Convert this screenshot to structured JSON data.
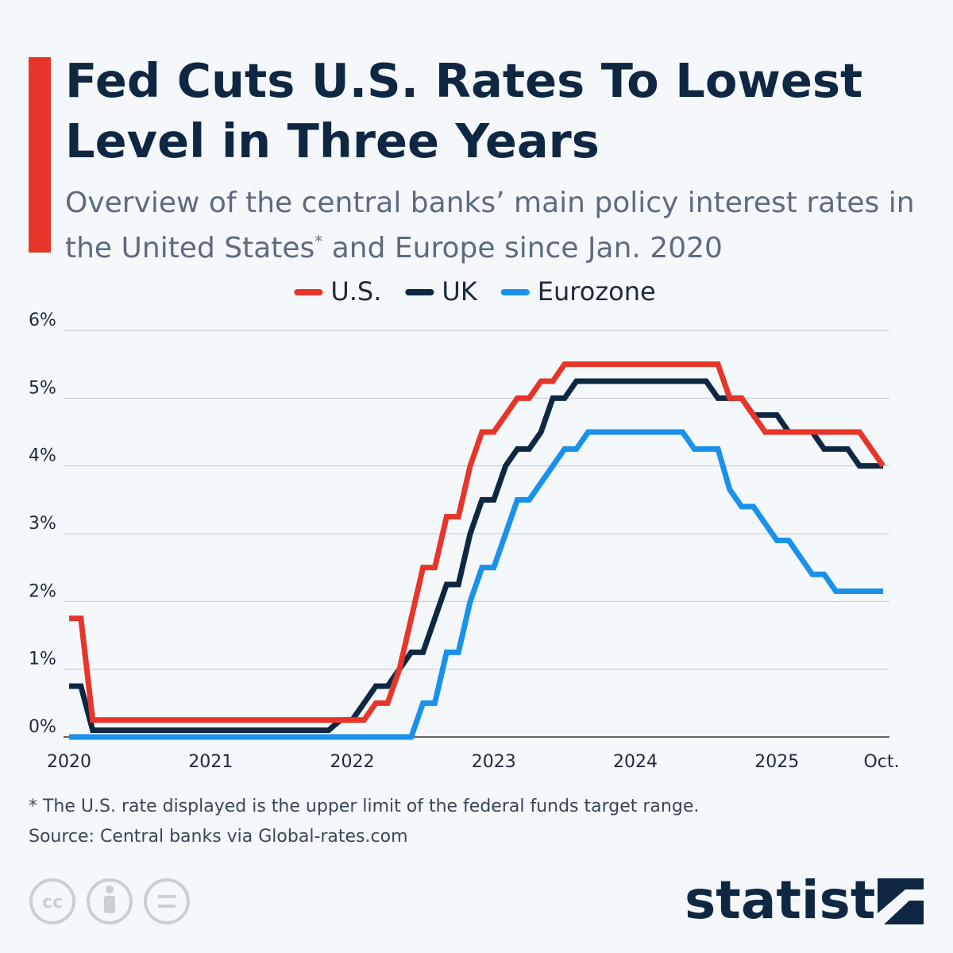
{
  "chart_data": {
    "type": "line",
    "title": "Fed Cuts U.S. Rates To Lowest Level in Three Years",
    "subtitle": {
      "before": "Overview of the central banks’ main policy interest rates in the United States",
      "mark": "*",
      "after": " and Europe since Jan. 2020"
    },
    "categories": [
      "2020",
      null,
      null,
      null,
      null,
      null,
      null,
      null,
      null,
      null,
      null,
      null,
      "2021",
      null,
      null,
      null,
      null,
      null,
      null,
      null,
      null,
      null,
      null,
      null,
      "2022",
      null,
      null,
      null,
      null,
      null,
      null,
      null,
      null,
      null,
      null,
      null,
      "2023",
      null,
      null,
      null,
      null,
      null,
      null,
      null,
      null,
      null,
      null,
      null,
      "2024",
      null,
      null,
      null,
      null,
      null,
      null,
      null,
      null,
      null,
      null,
      null,
      "2025",
      null,
      null,
      null,
      null,
      null,
      null,
      null,
      null,
      "Oct."
    ],
    "series": [
      {
        "name": "U.S.",
        "color": "#e8352a",
        "values": [
          1.75,
          1.75,
          0.25,
          0.25,
          0.25,
          0.25,
          0.25,
          0.25,
          0.25,
          0.25,
          0.25,
          0.25,
          0.25,
          0.25,
          0.25,
          0.25,
          0.25,
          0.25,
          0.25,
          0.25,
          0.25,
          0.25,
          0.25,
          0.25,
          0.25,
          0.25,
          0.5,
          0.5,
          1.0,
          1.75,
          2.5,
          2.5,
          3.25,
          3.25,
          4.0,
          4.5,
          4.5,
          4.75,
          5.0,
          5.0,
          5.25,
          5.25,
          5.5,
          5.5,
          5.5,
          5.5,
          5.5,
          5.5,
          5.5,
          5.5,
          5.5,
          5.5,
          5.5,
          5.5,
          5.5,
          5.5,
          5.0,
          5.0,
          4.75,
          4.5,
          4.5,
          4.5,
          4.5,
          4.5,
          4.5,
          4.5,
          4.5,
          4.5,
          4.25,
          4.0
        ]
      },
      {
        "name": "UK",
        "color": "#0f2742",
        "values": [
          0.75,
          0.75,
          0.1,
          0.1,
          0.1,
          0.1,
          0.1,
          0.1,
          0.1,
          0.1,
          0.1,
          0.1,
          0.1,
          0.1,
          0.1,
          0.1,
          0.1,
          0.1,
          0.1,
          0.1,
          0.1,
          0.1,
          0.1,
          0.25,
          0.25,
          0.5,
          0.75,
          0.75,
          1.0,
          1.25,
          1.25,
          1.75,
          2.25,
          2.25,
          3.0,
          3.5,
          3.5,
          4.0,
          4.25,
          4.25,
          4.5,
          5.0,
          5.0,
          5.25,
          5.25,
          5.25,
          5.25,
          5.25,
          5.25,
          5.25,
          5.25,
          5.25,
          5.25,
          5.25,
          5.25,
          5.0,
          5.0,
          5.0,
          4.75,
          4.75,
          4.75,
          4.5,
          4.5,
          4.5,
          4.25,
          4.25,
          4.25,
          4.0,
          4.0,
          4.0
        ]
      },
      {
        "name": "Eurozone",
        "color": "#1a91eb",
        "values": [
          0,
          0,
          0,
          0,
          0,
          0,
          0,
          0,
          0,
          0,
          0,
          0,
          0,
          0,
          0,
          0,
          0,
          0,
          0,
          0,
          0,
          0,
          0,
          0,
          0,
          0,
          0,
          0,
          0,
          0,
          0.5,
          0.5,
          1.25,
          1.25,
          2.0,
          2.5,
          2.5,
          3.0,
          3.5,
          3.5,
          3.75,
          4.0,
          4.25,
          4.25,
          4.5,
          4.5,
          4.5,
          4.5,
          4.5,
          4.5,
          4.5,
          4.5,
          4.5,
          4.25,
          4.25,
          4.25,
          3.65,
          3.4,
          3.4,
          3.15,
          2.9,
          2.9,
          2.65,
          2.4,
          2.4,
          2.15,
          2.15,
          2.15,
          2.15,
          2.15
        ]
      }
    ],
    "ylim": [
      0,
      6
    ],
    "yticks": [
      {
        "value": 0,
        "label": "0%"
      },
      {
        "value": 1,
        "label": "1%"
      },
      {
        "value": 2,
        "label": "2%"
      },
      {
        "value": 3,
        "label": "3%"
      },
      {
        "value": 4,
        "label": "4%"
      },
      {
        "value": 5,
        "label": "5%"
      },
      {
        "value": 6,
        "label": "6%"
      }
    ],
    "grid": true,
    "legend": "top",
    "footnote": "* The U.S. rate displayed is the upper limit of the federal funds target range.",
    "source": "Source: Central banks via Global-rates.com",
    "brand": "statista"
  }
}
